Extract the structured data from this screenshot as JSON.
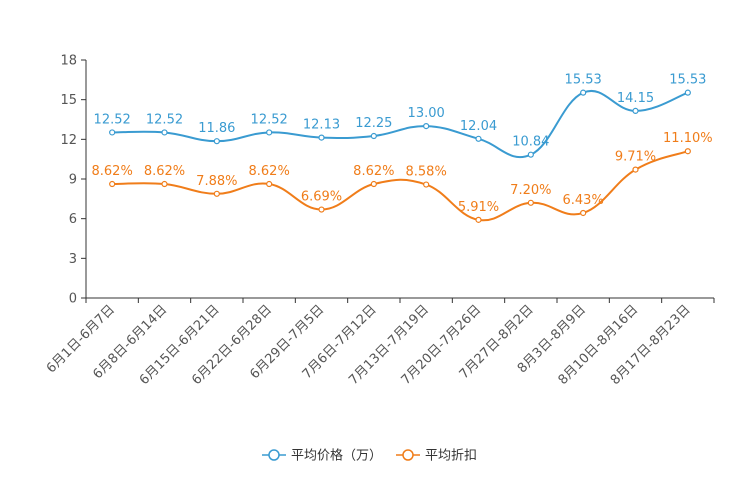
{
  "chart_data": {
    "type": "line",
    "title": "",
    "xlabel": "",
    "ylabel": "",
    "ylim": [
      0,
      18
    ],
    "yticks": [
      0,
      3,
      6,
      9,
      12,
      15,
      18
    ],
    "grid": false,
    "legend_position": "bottom-center",
    "categories": [
      "6月1日-6月7日",
      "6月8日-6月14日",
      "6月15日-6月21日",
      "6月22日-6月28日",
      "6月29日-7月5日",
      "7月6日-7月12日",
      "7月13日-7月19日",
      "7月20日-7月26日",
      "7月27日-8月2日",
      "8月3日-8月9日",
      "8月10日-8月16日",
      "8月17日-8月23日"
    ],
    "series": [
      {
        "name": "平均价格（万）",
        "color": "#3a9bd1",
        "values": [
          12.52,
          12.52,
          11.86,
          12.52,
          12.13,
          12.25,
          13.0,
          12.04,
          10.84,
          15.53,
          14.15,
          15.53
        ],
        "labels": [
          "12.52",
          "12.52",
          "11.86",
          "12.52",
          "12.13",
          "12.25",
          "13.00",
          "12.04",
          "10.84",
          "15.53",
          "14.15",
          "15.53"
        ]
      },
      {
        "name": "平均折扣",
        "color": "#f07d1a",
        "values": [
          8.62,
          8.62,
          7.88,
          8.62,
          6.69,
          8.62,
          8.58,
          5.91,
          7.2,
          6.43,
          9.71,
          11.1
        ],
        "labels": [
          "8.62%",
          "8.62%",
          "7.88%",
          "8.62%",
          "6.69%",
          "8.62%",
          "8.58%",
          "5.91%",
          "7.20%",
          "6.43%",
          "9.71%",
          "11.10%"
        ]
      }
    ]
  }
}
